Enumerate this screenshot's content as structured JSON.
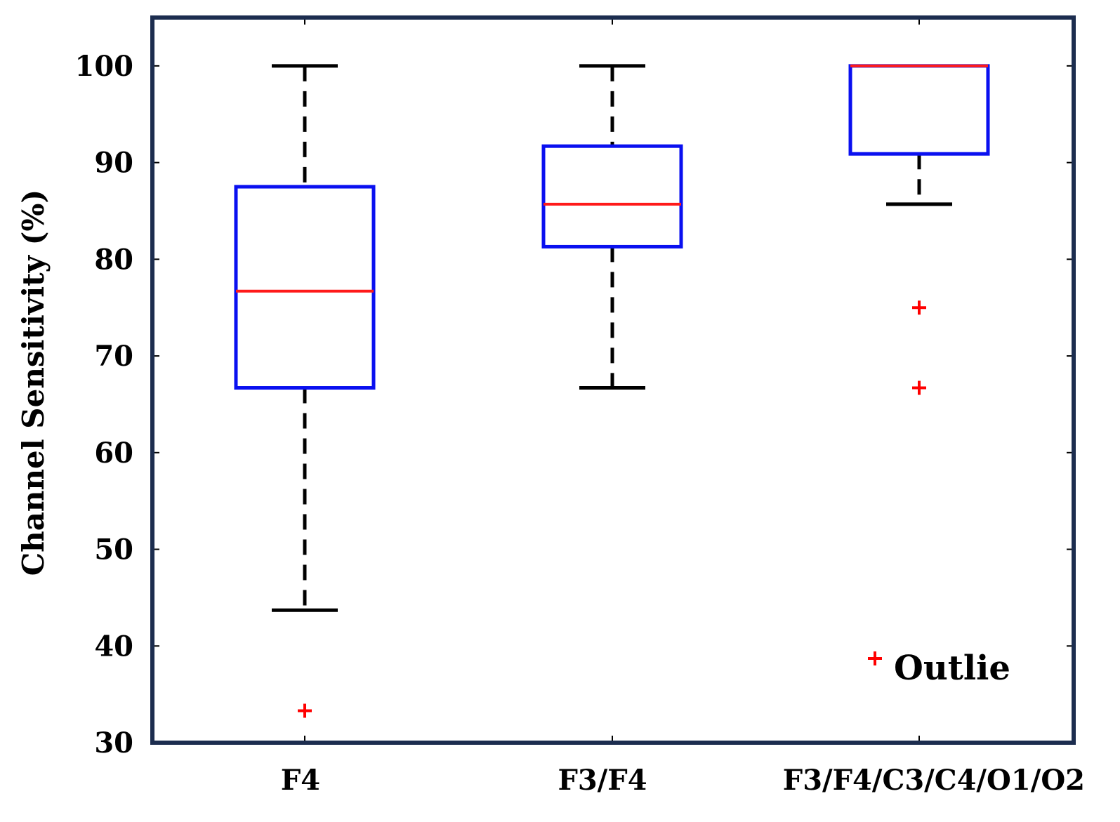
{
  "chart_data": {
    "type": "boxplot",
    "ylabel": "Channel Sensitivity (%)",
    "xlabel": "",
    "title": "",
    "ylim": [
      30,
      105
    ],
    "yticks": [
      "30",
      "40",
      "50",
      "60",
      "70",
      "80",
      "90",
      "100"
    ],
    "categories": [
      "F4",
      "F3/F4",
      "F3/F4/C3/C4/O1/O2"
    ],
    "boxes": [
      {
        "category": "F4",
        "whisker_low": 43.7,
        "q1": 66.7,
        "median": 76.7,
        "q3": 87.5,
        "whisker_high": 100,
        "outliers": [
          33.3
        ]
      },
      {
        "category": "F3/F4",
        "whisker_low": 66.7,
        "q1": 81.3,
        "median": 85.7,
        "q3": 91.7,
        "whisker_high": 100,
        "outliers": []
      },
      {
        "category": "F3/F4/C3/C4/O1/O2",
        "whisker_low": 85.7,
        "q1": 90.9,
        "median": 100,
        "q3": 100,
        "whisker_high": 100,
        "outliers": [
          75,
          66.7
        ]
      }
    ],
    "legend": {
      "label": "Outlie",
      "placement": "bottom-right"
    },
    "grid": false
  },
  "colors": {
    "frame": "#1c2d4f",
    "box": "#0a10f0",
    "median": "#ff1a1a",
    "whisker": "#000000",
    "outlier": "#ff0000"
  }
}
